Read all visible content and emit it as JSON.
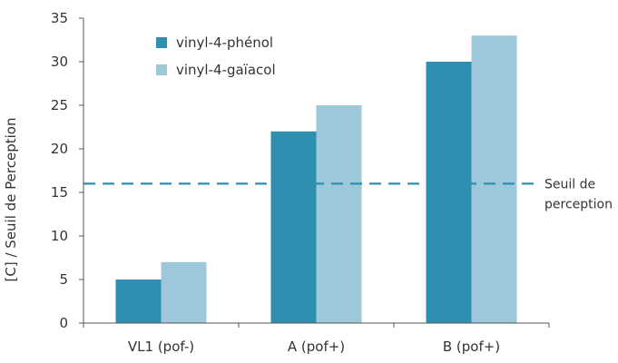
{
  "chart_data": {
    "type": "bar",
    "categories": [
      "VL1 (pof-)",
      "A (pof+)",
      "B (pof+)"
    ],
    "series": [
      {
        "name": "vinyl-4-phénol",
        "values": [
          5,
          22,
          30
        ],
        "color": "#2f8fb1"
      },
      {
        "name": "vinyl-4-gaïacol",
        "values": [
          7,
          25,
          33
        ],
        "color": "#9dc8da"
      }
    ],
    "title": "",
    "xlabel": "",
    "ylabel": "[C] / Seuil de Perception",
    "ylim": [
      0,
      35
    ],
    "yticks": [
      "0",
      "5",
      "10",
      "15",
      "20",
      "25",
      "30",
      "35"
    ],
    "grid": false,
    "legend": {
      "position": "top-left"
    },
    "threshold": {
      "value": 16,
      "label_line1": "Seuil de",
      "label_line2": "perception",
      "color": "#2f8fb1",
      "style": "dashed"
    }
  }
}
